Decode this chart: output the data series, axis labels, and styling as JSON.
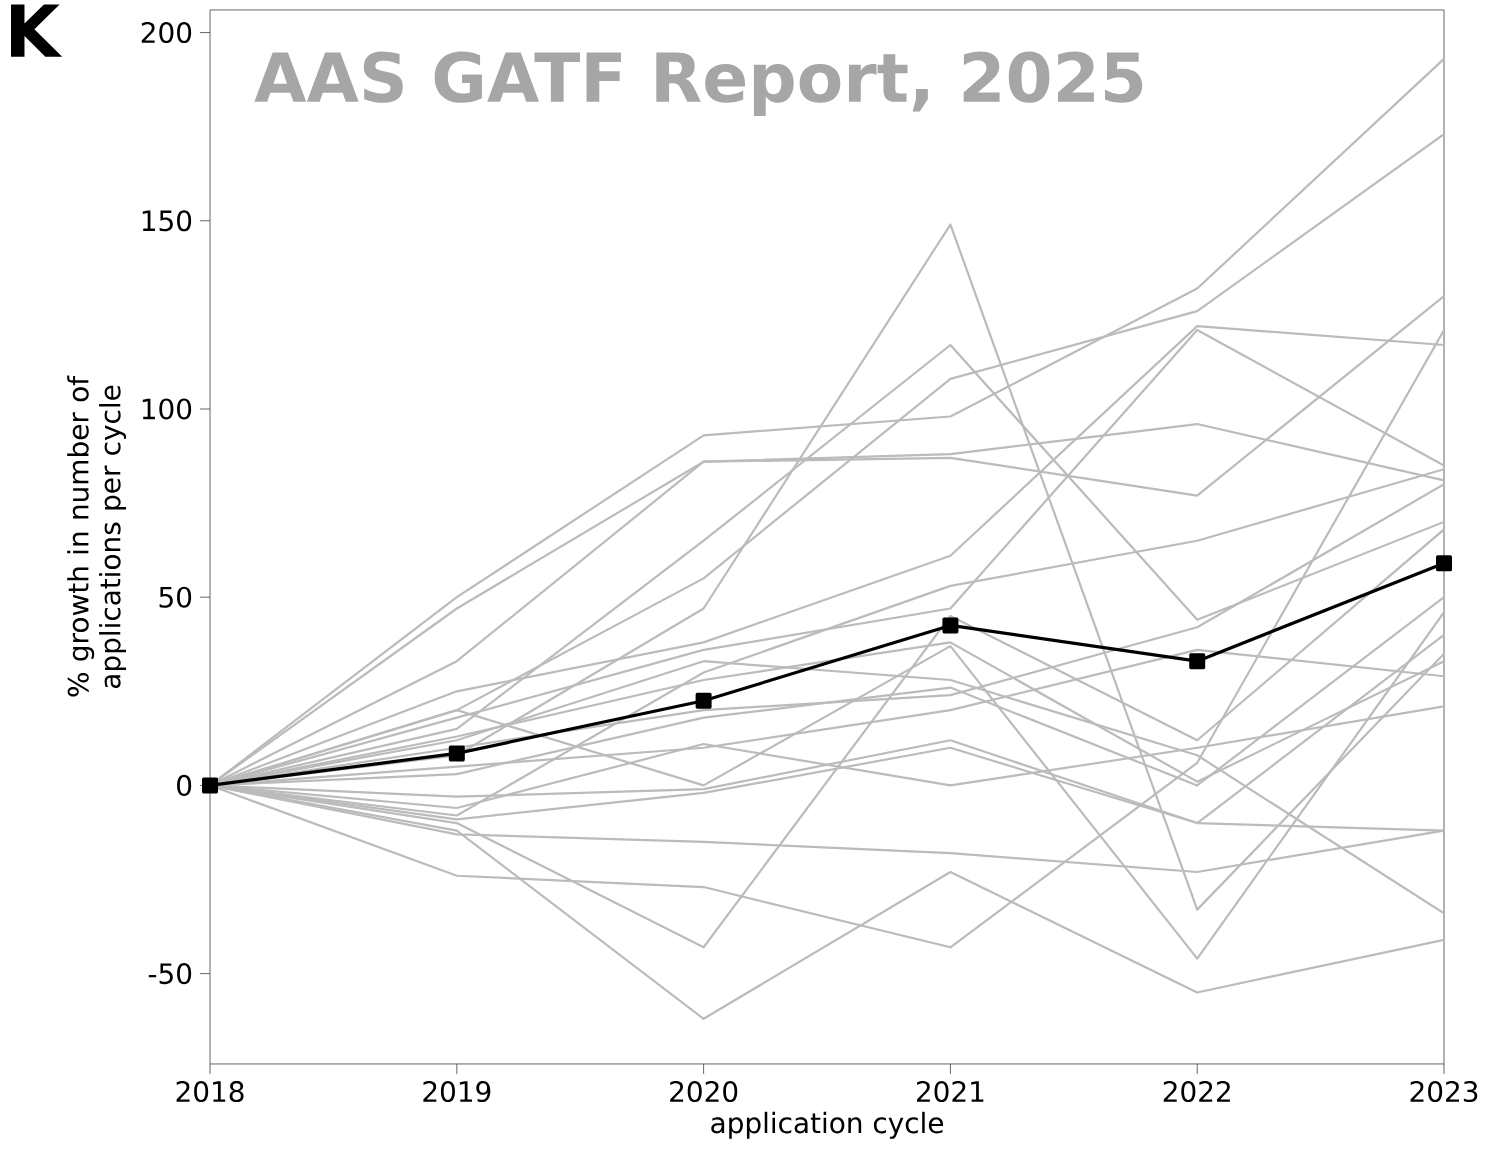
{
  "chart_data": {
    "type": "line",
    "xlabel": "application cycle",
    "ylabel": "% growth in number of applications per cycle",
    "annotations": [
      "K",
      "AAS GATF Report, 2025"
    ],
    "x": [
      2018,
      2019,
      2020,
      2021,
      2022,
      2023
    ],
    "xlim": [
      2018,
      2023
    ],
    "xticks": [
      2018,
      2019,
      2020,
      2021,
      2022,
      2023
    ],
    "ylim": [
      -74,
      206
    ],
    "yticks": [
      -50,
      0,
      50,
      100,
      150,
      200
    ],
    "grid": false,
    "series": [
      {
        "color": "#bbbbbb",
        "values": [
          0,
          50,
          93,
          98,
          132,
          193
        ]
      },
      {
        "color": "#bbbbbb",
        "values": [
          0,
          47,
          86,
          88,
          96,
          81
        ]
      },
      {
        "color": "#bbbbbb",
        "values": [
          0,
          33,
          86,
          87,
          77,
          130
        ]
      },
      {
        "color": "#bbbbbb",
        "values": [
          0,
          20,
          55,
          108,
          126,
          173
        ]
      },
      {
        "color": "#bbbbbb",
        "values": [
          0,
          8,
          47,
          149,
          -33,
          35
        ]
      },
      {
        "color": "#bbbbbb",
        "values": [
          0,
          15,
          65,
          117,
          44,
          70
        ]
      },
      {
        "color": "#bbbbbb",
        "values": [
          0,
          25,
          38,
          61,
          122,
          117
        ]
      },
      {
        "color": "#bbbbbb",
        "values": [
          0,
          18,
          36,
          47,
          121,
          85
        ]
      },
      {
        "color": "#bbbbbb",
        "values": [
          0,
          -8,
          30,
          53,
          65,
          84
        ]
      },
      {
        "color": "#bbbbbb",
        "values": [
          0,
          12,
          33,
          28,
          8,
          -34
        ]
      },
      {
        "color": "#bbbbbb",
        "values": [
          0,
          10,
          20,
          24,
          42,
          80
        ]
      },
      {
        "color": "#bbbbbb",
        "values": [
          0,
          -10,
          -43,
          45,
          12,
          68
        ]
      },
      {
        "color": "#bbbbbb",
        "values": [
          0,
          -12,
          -62,
          -23,
          -55,
          -41
        ]
      },
      {
        "color": "#bbbbbb",
        "values": [
          0,
          -24,
          -27,
          -43,
          6,
          121
        ]
      },
      {
        "color": "#bbbbbb",
        "values": [
          0,
          5,
          10,
          20,
          36,
          29
        ]
      },
      {
        "color": "#bbbbbb",
        "values": [
          0,
          -13,
          -15,
          -18,
          -23,
          -12
        ]
      },
      {
        "color": "#bbbbbb",
        "values": [
          0,
          -3,
          -1,
          12,
          -10,
          -12
        ]
      },
      {
        "color": "#bbbbbb",
        "values": [
          0,
          3,
          18,
          26,
          0,
          50
        ]
      },
      {
        "color": "#bbbbbb",
        "values": [
          0,
          20,
          0,
          37,
          -46,
          46
        ]
      },
      {
        "color": "#bbbbbb",
        "values": [
          0,
          -6,
          11,
          0,
          10,
          21
        ]
      },
      {
        "color": "#bbbbbb",
        "values": [
          0,
          13,
          28,
          38,
          1,
          33
        ]
      },
      {
        "color": "#bbbbbb",
        "values": [
          0,
          -9,
          -2,
          10,
          -10,
          40
        ]
      },
      {
        "color": "#000000",
        "marker": "square",
        "values": [
          0,
          8.5,
          22.5,
          42.5,
          33,
          59
        ]
      }
    ]
  }
}
